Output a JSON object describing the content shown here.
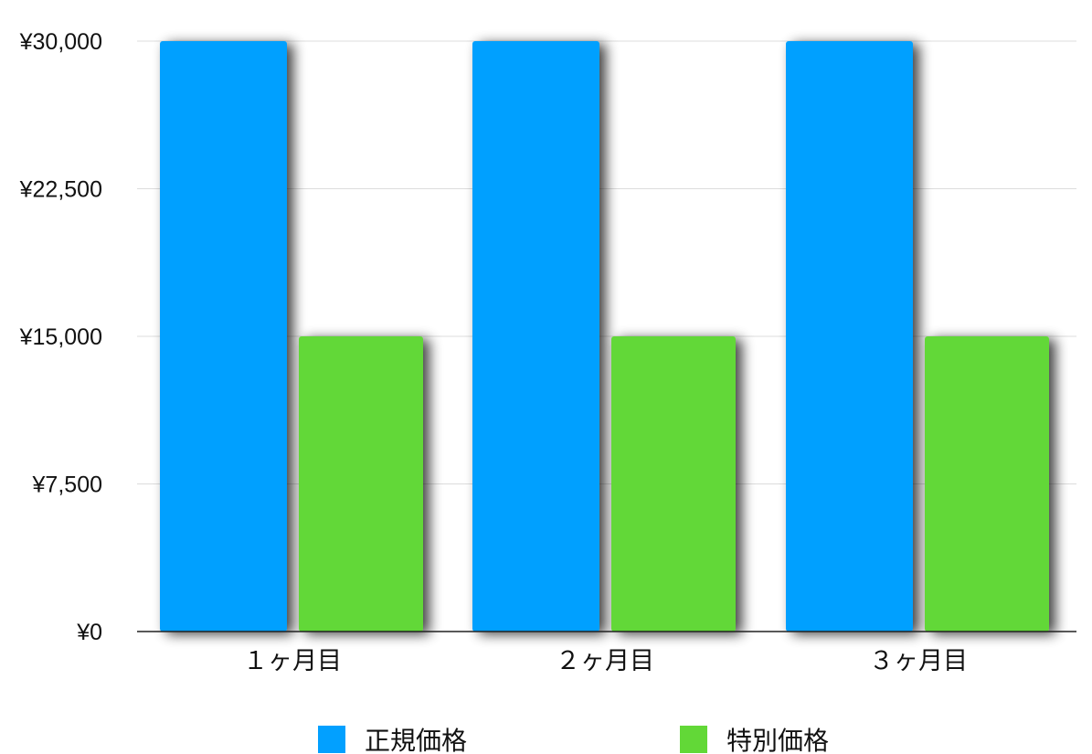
{
  "chart_data": {
    "type": "bar",
    "categories": [
      "１ヶ月目",
      "２ヶ月目",
      "３ヶ月目"
    ],
    "series": [
      {
        "name": "正規価格",
        "values": [
          30000,
          30000,
          30000
        ],
        "color": "#02A0FF"
      },
      {
        "name": "特別価格",
        "values": [
          15000,
          15000,
          15000
        ],
        "color": "#62D837"
      }
    ],
    "y_ticks": [
      "¥0",
      "¥7,500",
      "¥15,000",
      "¥22,500",
      "¥30,000"
    ],
    "y_tick_values": [
      0,
      7500,
      15000,
      22500,
      30000
    ],
    "ylim": [
      0,
      30000
    ],
    "grid": true,
    "legend_position": "bottom-center",
    "title": "",
    "xlabel": "",
    "ylabel": ""
  }
}
